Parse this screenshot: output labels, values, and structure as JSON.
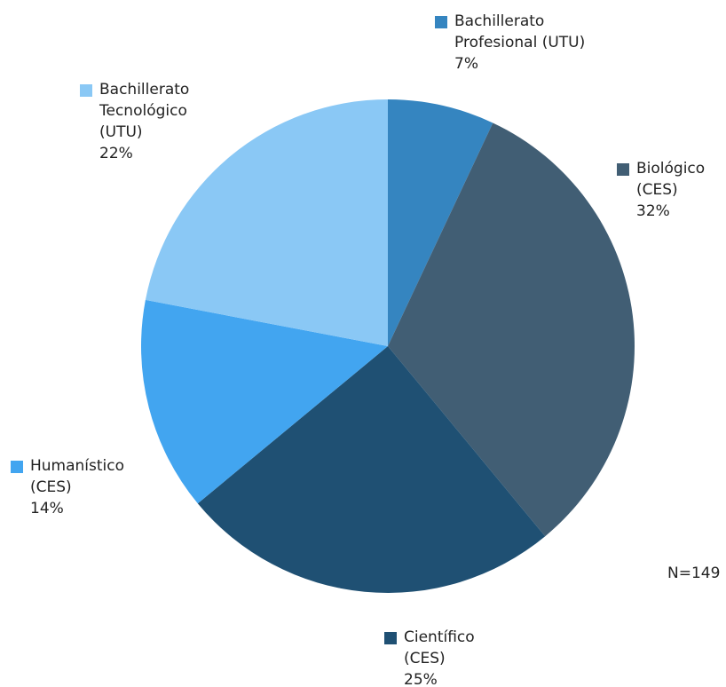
{
  "chart_data": {
    "type": "pie",
    "categories": [
      "Bachillerato Profesional (UTU)",
      "Biológico (CES)",
      "Científico (CES)",
      "Humanístico (CES)",
      "Bachillerato Tecnológico (UTU)"
    ],
    "values": [
      7,
      32,
      25,
      14,
      22
    ],
    "value_labels": [
      "7%",
      "32%",
      "25%",
      "14%",
      "22%"
    ],
    "colors": [
      "#3585c0",
      "#415e74",
      "#1f5073",
      "#42a5f0",
      "#8ac8f5"
    ],
    "annotation": "N=149"
  }
}
